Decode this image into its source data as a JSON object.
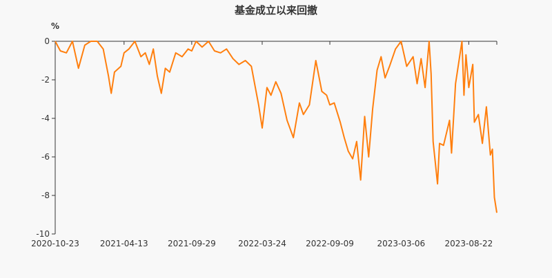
{
  "chart_data": {
    "type": "line",
    "title": "基金成立以来回撤",
    "ylabel": "%",
    "xlabel": "",
    "ylim": [
      -10,
      0
    ],
    "yticks": [
      0,
      -2,
      -4,
      -6,
      -8,
      -10
    ],
    "xlim": [
      "2020-10-23",
      "2023-10-31"
    ],
    "xticks": [
      "2020-10-23",
      "2021-04-13",
      "2021-09-29",
      "2022-03-24",
      "2022-09-09",
      "2023-03-06",
      "2023-08-22"
    ],
    "grid": false,
    "legend": "none",
    "series_color": "#ff7f0e",
    "series": [
      {
        "x": [
          "2020-10-23",
          "2020-11-05",
          "2020-11-20",
          "2020-12-05",
          "2020-12-20",
          "2021-01-05",
          "2021-01-20",
          "2021-02-05",
          "2021-02-20",
          "2021-03-05",
          "2021-03-12",
          "2021-03-20",
          "2021-04-05",
          "2021-04-13",
          "2021-04-25",
          "2021-05-10",
          "2021-05-25",
          "2021-06-05",
          "2021-06-15",
          "2021-06-25",
          "2021-07-05",
          "2021-07-15",
          "2021-07-25",
          "2021-08-05",
          "2021-08-20",
          "2021-09-05",
          "2021-09-20",
          "2021-09-29",
          "2021-10-10",
          "2021-10-25",
          "2021-11-10",
          "2021-11-25",
          "2021-12-10",
          "2021-12-25",
          "2022-01-10",
          "2022-01-25",
          "2022-02-10",
          "2022-02-25",
          "2022-03-05",
          "2022-03-15",
          "2022-03-24",
          "2022-04-05",
          "2022-04-15",
          "2022-04-27",
          "2022-05-10",
          "2022-05-25",
          "2022-06-10",
          "2022-06-25",
          "2022-07-05",
          "2022-07-20",
          "2022-08-05",
          "2022-08-20",
          "2022-09-01",
          "2022-09-09",
          "2022-09-20",
          "2022-10-05",
          "2022-10-15",
          "2022-10-25",
          "2022-11-05",
          "2022-11-15",
          "2022-11-25",
          "2022-12-05",
          "2022-12-15",
          "2022-12-25",
          "2023-01-05",
          "2023-01-15",
          "2023-01-25",
          "2023-02-05",
          "2023-02-20",
          "2023-03-06",
          "2023-03-20",
          "2023-04-05",
          "2023-04-15",
          "2023-04-25",
          "2023-05-05",
          "2023-05-15",
          "2023-05-20",
          "2023-05-25",
          "2023-06-05",
          "2023-06-10",
          "2023-06-20",
          "2023-07-05",
          "2023-07-10",
          "2023-07-20",
          "2023-08-05",
          "2023-08-10",
          "2023-08-15",
          "2023-08-22",
          "2023-09-01",
          "2023-09-05",
          "2023-09-15",
          "2023-09-25",
          "2023-10-05",
          "2023-10-15",
          "2023-10-20",
          "2023-10-25",
          "2023-10-31"
        ],
        "values": [
          0,
          -0.5,
          -0.6,
          0,
          -1.4,
          -0.2,
          0,
          0,
          -0.4,
          -1.8,
          -2.7,
          -1.6,
          -1.3,
          -0.6,
          -0.4,
          0,
          -0.8,
          -0.6,
          -1.2,
          -0.4,
          -1.8,
          -2.7,
          -1.4,
          -1.6,
          -0.6,
          -0.8,
          -0.4,
          -0.5,
          0,
          -0.3,
          0,
          -0.5,
          -0.6,
          -0.4,
          -0.9,
          -1.2,
          -1.0,
          -1.3,
          -2.2,
          -3.3,
          -4.5,
          -2.4,
          -2.8,
          -2.1,
          -2.7,
          -4.1,
          -5.0,
          -3.2,
          -3.8,
          -3.3,
          -1.0,
          -2.6,
          -2.8,
          -3.3,
          -3.2,
          -4.2,
          -5.0,
          -5.7,
          -6.1,
          -5.2,
          -7.2,
          -3.9,
          -6.0,
          -3.5,
          -1.5,
          -0.8,
          -1.9,
          -1.3,
          -0.4,
          0,
          -1.3,
          -0.8,
          -2.2,
          -0.9,
          -2.4,
          0,
          -1.7,
          -5.2,
          -7.4,
          -5.3,
          -5.4,
          -4.1,
          -5.8,
          -2.2,
          0,
          -2.8,
          -0.7,
          -2.4,
          -1.2,
          -4.2,
          -3.8,
          -5.3,
          -3.4,
          -5.9,
          -5.6,
          -8.1,
          -8.9
        ]
      }
    ]
  }
}
